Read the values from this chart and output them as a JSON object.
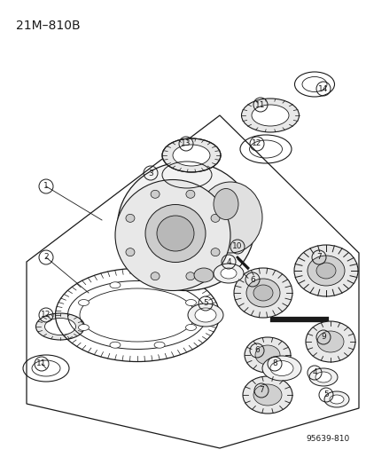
{
  "title": "21M–810B",
  "figure_number": "95639-810",
  "bg": "#ffffff",
  "lc": "#1a1a1a",
  "fig_width": 4.14,
  "fig_height": 5.33,
  "dpi": 100
}
